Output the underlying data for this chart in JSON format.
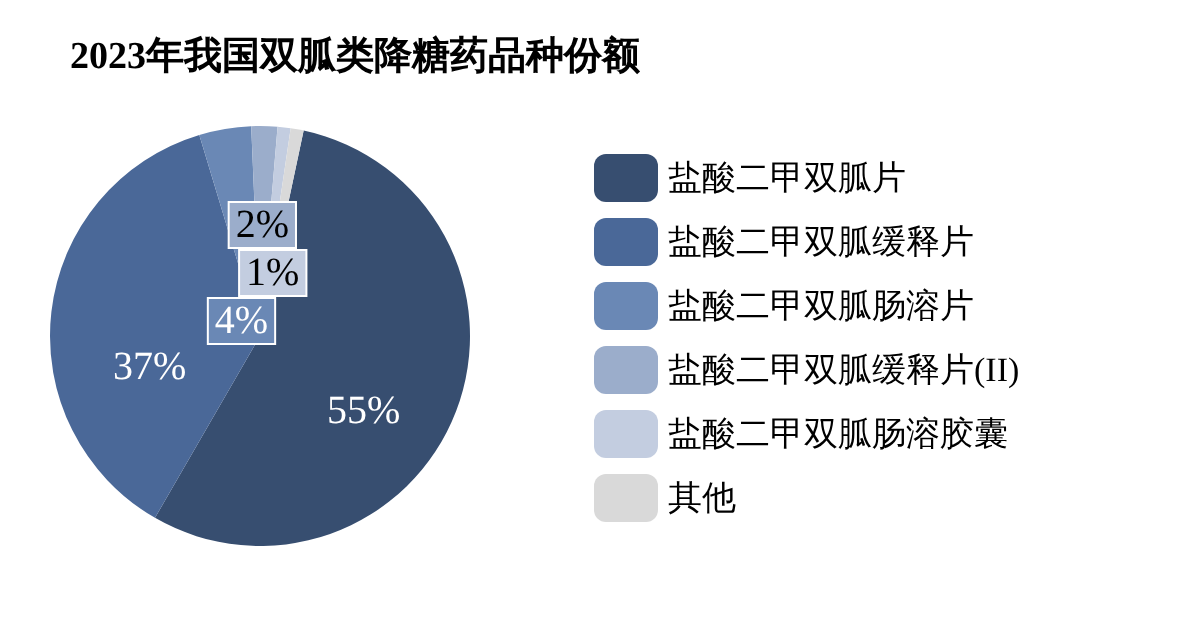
{
  "chart_data": {
    "type": "pie",
    "title": "2023年我国双胍类降糖药品种份额",
    "categories": [
      "盐酸二甲双胍片",
      "盐酸二甲双胍缓释片",
      "盐酸二甲双胍肠溶片",
      "盐酸二甲双胍缓释片(II)",
      "盐酸二甲双胍肠溶胶囊",
      "其他"
    ],
    "values": [
      55,
      37,
      4,
      2,
      1,
      1
    ],
    "colors": [
      "#374e70",
      "#4a6898",
      "#6a88b5",
      "#9badcb",
      "#c3cde0",
      "#d9d9d9"
    ],
    "value_labels": [
      "55%",
      "37%",
      "4%",
      "2%",
      "1%",
      null
    ],
    "legend": "right"
  }
}
